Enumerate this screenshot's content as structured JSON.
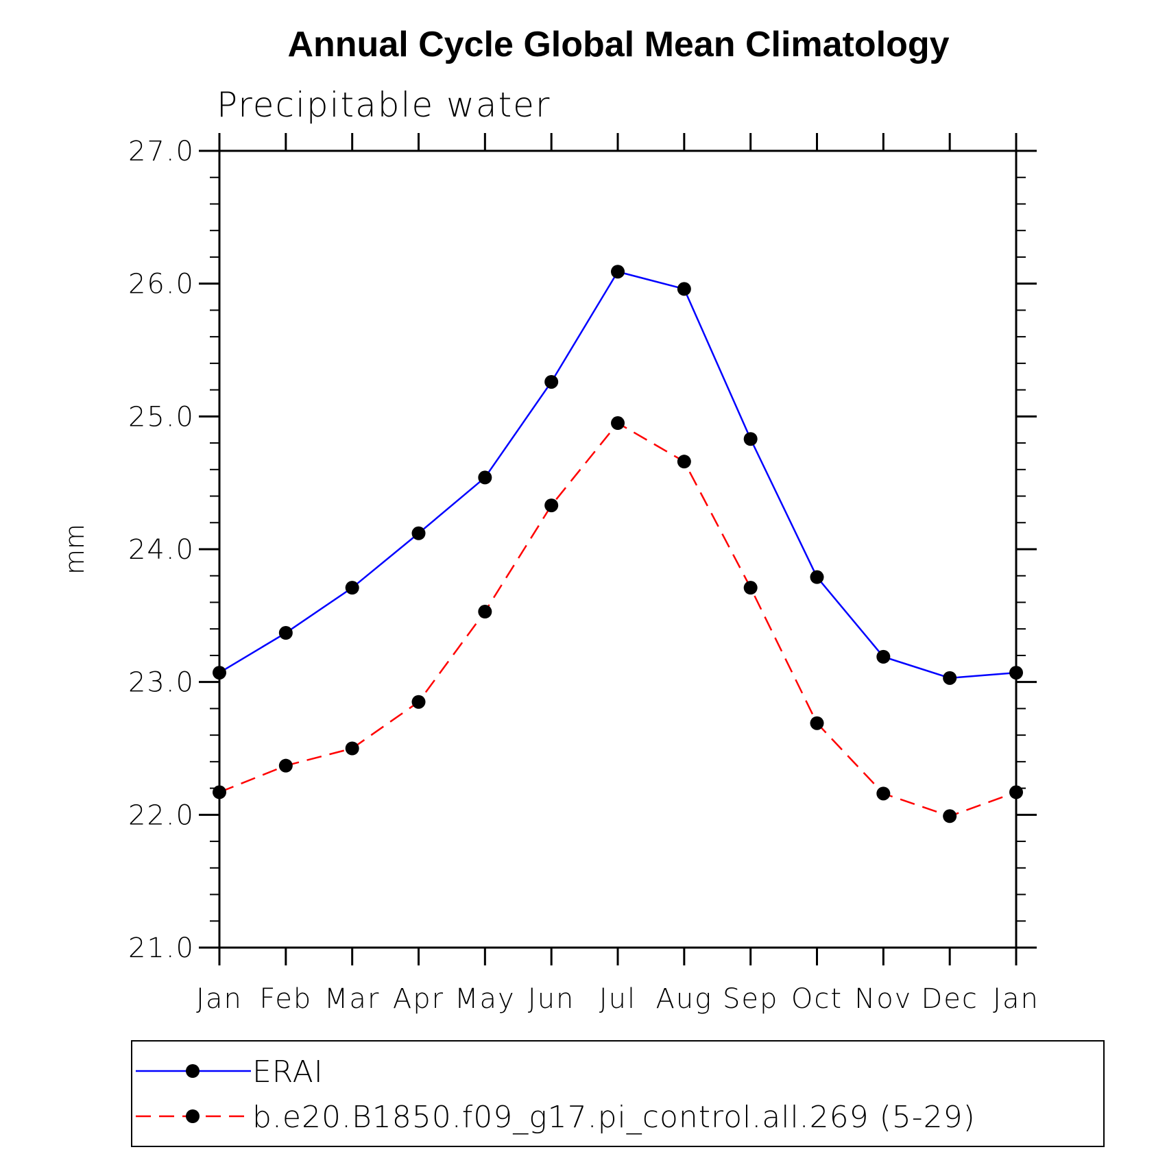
{
  "chart_data": {
    "type": "line",
    "title": "Annual Cycle Global Mean Climatology",
    "subtitle": "Precipitable water",
    "xlabel": "",
    "ylabel": "mm",
    "categories": [
      "Jan",
      "Feb",
      "Mar",
      "Apr",
      "May",
      "Jun",
      "Jul",
      "Aug",
      "Sep",
      "Oct",
      "Nov",
      "Dec",
      "Jan"
    ],
    "ylim": [
      21.0,
      27.0
    ],
    "yticks": [
      "21.0",
      "22.0",
      "23.0",
      "24.0",
      "25.0",
      "26.0",
      "27.0"
    ],
    "grid": false,
    "legend_position": "bottom",
    "series": [
      {
        "name": "ERAI",
        "color": "#0000ff",
        "line_style": "solid",
        "values": [
          23.07,
          23.37,
          23.71,
          24.12,
          24.54,
          25.26,
          26.09,
          25.96,
          24.83,
          23.79,
          23.19,
          23.03,
          23.07
        ]
      },
      {
        "name": "b.e20.B1850.f09_g17.pi_control.all.269 (5-29)",
        "color": "#ff0000",
        "line_style": "dashed",
        "values": [
          22.17,
          22.37,
          22.5,
          22.85,
          23.53,
          24.33,
          24.95,
          24.66,
          23.71,
          22.69,
          22.16,
          21.99,
          22.17
        ]
      }
    ],
    "marker_color": "#000000"
  }
}
